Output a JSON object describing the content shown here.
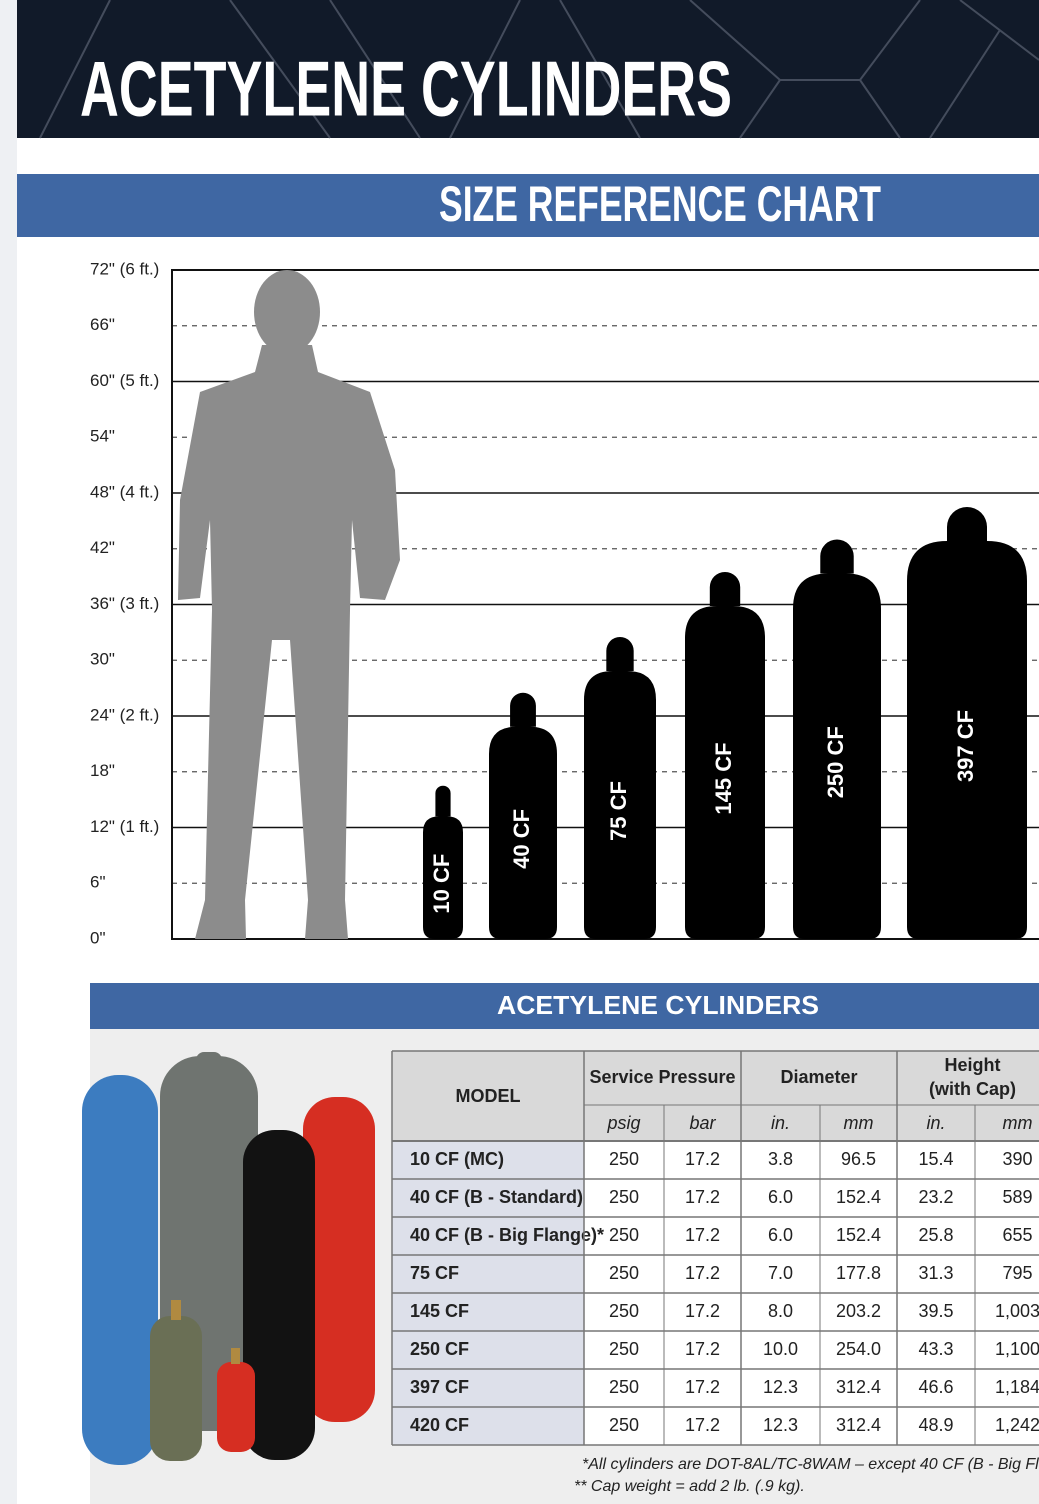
{
  "header": {
    "title": "ACETYLENE CYLINDERS",
    "subtitle": "SIZE REFERENCE CHART"
  },
  "chart_data": {
    "type": "cylinder",
    "categories": [
      "10 CF",
      "40 CF",
      "75 CF",
      "145 CF",
      "250 CF",
      "397 CF"
    ],
    "values": [
      16.5,
      26.5,
      32.5,
      39.5,
      43,
      46.5
    ],
    "color": "#000000",
    "ylim": [
      0,
      72
    ],
    "yticks": [
      {
        "value": 0,
        "label": "0\""
      },
      {
        "value": 6,
        "label": "6\""
      },
      {
        "value": 12,
        "label": "12\" (1 ft.)"
      },
      {
        "value": 18,
        "label": "18\""
      },
      {
        "value": 24,
        "label": "24\" (2 ft.)"
      },
      {
        "value": 30,
        "label": "30\""
      },
      {
        "value": 36,
        "label": "36\" (3 ft.)"
      },
      {
        "value": 42,
        "label": "42\""
      },
      {
        "value": 48,
        "label": "48\" (4 ft.)"
      },
      {
        "value": 54,
        "label": "54\""
      },
      {
        "value": 60,
        "label": "60\" (5 ft.)"
      },
      {
        "value": 66,
        "label": "66\""
      },
      {
        "value": 72,
        "label": "72\" (6 ft.)"
      }
    ],
    "grid": true
  },
  "table": {
    "title": "ACETYLENE CYLINDERS",
    "columns": [
      "MODEL",
      "Service Pressure",
      "Diameter",
      "Height",
      "(with Cap)"
    ],
    "units": [
      "psig",
      "bar",
      "in.",
      "mm",
      "in.",
      "mm"
    ],
    "rows": [
      [
        "10 CF (MC)",
        "250",
        "17.2",
        "3.8",
        "96.5",
        "15.4",
        "390"
      ],
      [
        "40 CF  (B - Standard)",
        "250",
        "17.2",
        "6.0",
        "152.4",
        "23.2",
        "589"
      ],
      [
        "40 CF  (B - Big Flange)*",
        "250",
        "17.2",
        "6.0",
        "152.4",
        "25.8",
        "655"
      ],
      [
        "75 CF",
        "250",
        "17.2",
        "7.0",
        "177.8",
        "31.3",
        "795"
      ],
      [
        "145 CF",
        "250",
        "17.2",
        "8.0",
        "203.2",
        "39.5",
        "1,003"
      ],
      [
        "250 CF",
        "250",
        "17.2",
        "10.0",
        "254.0",
        "43.3",
        "1,100"
      ],
      [
        "397 CF",
        "250",
        "17.2",
        "12.3",
        "312.4",
        "46.6",
        "1,184"
      ],
      [
        "420 CF",
        "250",
        "17.2",
        "12.3",
        "312.4",
        "48.9",
        "1,242"
      ]
    ],
    "footnotes": [
      "*All cylinders are DOT-8AL/TC-8WAM – except 40 CF (B - Big Fl",
      "** Cap weight = add 2 lb. (.9 kg)."
    ]
  }
}
